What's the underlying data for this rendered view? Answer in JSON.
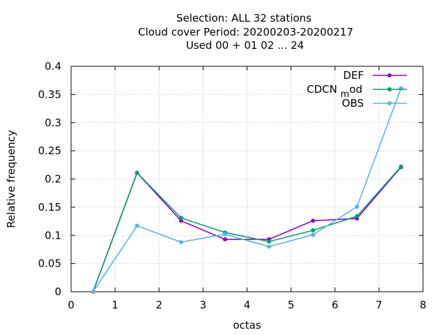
{
  "chart_data": {
    "type": "line",
    "title_lines": [
      "Selection: ALL      32 stations",
      "Cloud cover  Period: 20200203-20200217",
      "Used  00 + 01 02 ... 24"
    ],
    "xlabel": "octas",
    "ylabel": "Relative frequency",
    "xlim": [
      0,
      8
    ],
    "ylim": [
      0,
      0.4
    ],
    "x_ticks": [
      "0",
      "1",
      "2",
      "3",
      "4",
      "5",
      "6",
      "7",
      "8"
    ],
    "y_ticks": [
      "0",
      "0.05",
      "0.1",
      "0.15",
      "0.2",
      "0.25",
      "0.3",
      "0.35",
      "0.4"
    ],
    "grid": true,
    "legend_position": "top-right",
    "x": [
      0.5,
      1.5,
      2.5,
      3.5,
      4.5,
      5.5,
      6.5,
      7.5
    ],
    "series": [
      {
        "name": "DEF",
        "color": "#9400d3",
        "values": [
          0.0,
          0.211,
          0.126,
          0.093,
          0.093,
          0.126,
          0.13,
          0.221
        ]
      },
      {
        "name": "CDCN_mod",
        "color": "#009e73",
        "values": [
          0.0,
          0.211,
          0.131,
          0.105,
          0.089,
          0.109,
          0.134,
          0.222
        ]
      },
      {
        "name": "OBS",
        "color": "#56b4e9",
        "values": [
          0.0,
          0.117,
          0.088,
          0.102,
          0.08,
          0.101,
          0.151,
          0.361
        ]
      }
    ]
  }
}
